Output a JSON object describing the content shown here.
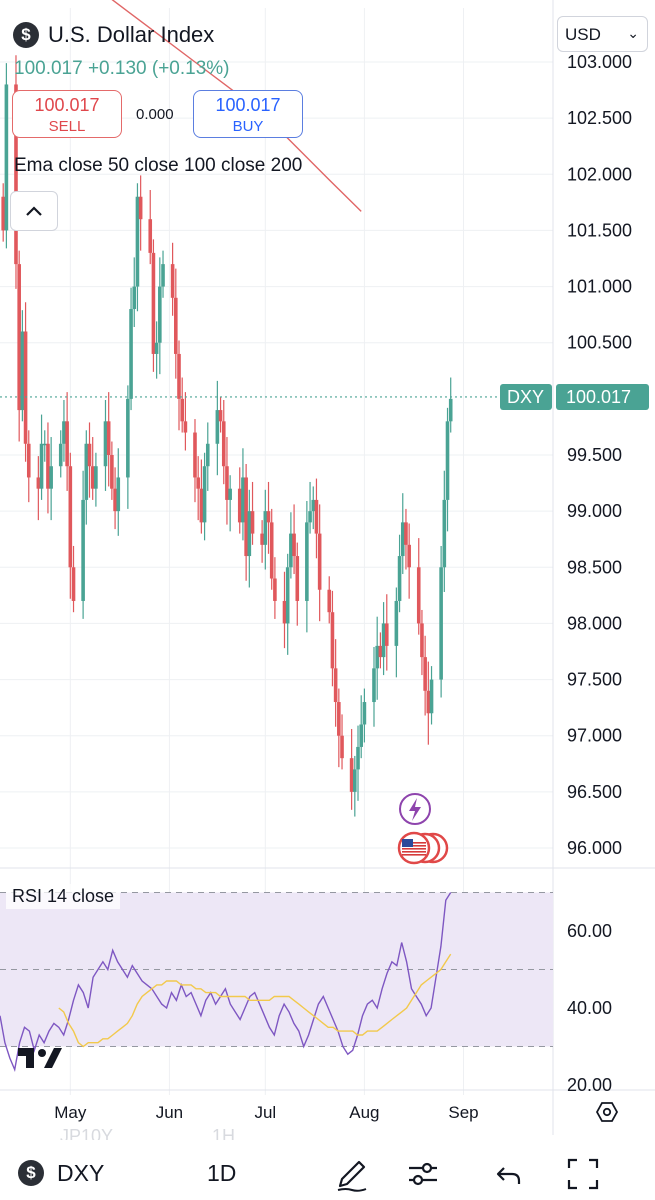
{
  "header": {
    "symbol_icon": "$",
    "title": "U.S. Dollar Index",
    "price_line": "100.017 +0.130 (+0.13%)",
    "sell_price": "100.017",
    "sell_label": "SELL",
    "spread": "0.000",
    "buy_price": "100.017",
    "buy_label": "BUY",
    "indicator_legend": "Ema close 50 close 100 close 200",
    "currency": "USD",
    "collapse_icon": "chevron-up-icon"
  },
  "rsi_label": "RSI 14 close",
  "ghost_text": {
    "left": "JP10Y",
    "right": "1H"
  },
  "bottom_bar": {
    "symbol_icon": "$",
    "symbol": "DXY",
    "timeframe": "1D",
    "icons": [
      "drawing-pen-icon",
      "indicators-settings-icon",
      "undo-icon",
      "fullscreen-icon"
    ]
  },
  "colors": {
    "up": "#4aa394",
    "down": "#e0585c",
    "ema": "#e06666",
    "rsi_line": "#7e57c2",
    "rsi_ma": "#f2c94c",
    "rsi_band": "#ede7f6",
    "last_price_tag": "#4aa394"
  },
  "chart_data": {
    "type": "candlestick",
    "symbol": "DXY",
    "last_price": 100.017,
    "last_price_label": "100.017",
    "y_ticks": [
      "103.000",
      "102.500",
      "102.000",
      "101.500",
      "101.000",
      "100.500",
      "99.500",
      "99.000",
      "98.500",
      "98.000",
      "97.500",
      "97.000",
      "96.500",
      "96.000"
    ],
    "y_tick_values": [
      103.0,
      102.5,
      102.0,
      101.5,
      101.0,
      100.5,
      99.5,
      99.0,
      98.5,
      98.0,
      97.5,
      97.0,
      96.5,
      96.0
    ],
    "ylim": [
      95.8,
      103.5
    ],
    "x_labels": [
      "May",
      "Jun",
      "Jul",
      "Aug",
      "Sep"
    ],
    "x_label_dates": [
      "2025-05-01",
      "2025-06-01",
      "2025-07-01",
      "2025-08-01",
      "2025-09-01"
    ],
    "xlim": [
      "2025-04-09",
      "2025-09-29"
    ],
    "start_date": "2025-04-10",
    "closes": [
      101.5,
      102.8,
      101.2,
      99.9,
      100.6,
      99.6,
      99.3,
      99.2,
      99.6,
      99.6,
      99.2,
      99.4,
      99.6,
      99.8,
      99.4,
      98.5,
      98.2,
      99.1,
      99.6,
      99.4,
      99.2,
      99.4,
      99.8,
      99.5,
      99.2,
      99.0,
      99.3,
      100.0,
      100.8,
      101.0,
      101.8,
      101.6,
      101.3,
      100.4,
      100.5,
      101.0,
      101.2,
      100.9,
      100.4,
      100.0,
      99.8,
      99.7,
      99.3,
      99.2,
      98.9,
      99.4,
      99.6,
      99.9,
      99.8,
      99.4,
      99.1,
      99.2,
      98.9,
      99.3,
      98.6,
      99.0,
      98.8,
      98.7,
      99.0,
      98.9,
      98.4,
      98.2,
      98.0,
      98.5,
      98.8,
      98.6,
      98.2,
      98.9,
      99.0,
      99.1,
      98.8,
      98.3,
      98.1,
      97.6,
      97.3,
      97.0,
      96.8,
      96.5,
      96.7,
      96.9,
      97.1,
      97.3,
      97.6,
      97.8,
      97.7,
      98.0,
      97.8,
      98.2,
      98.6,
      98.9,
      98.7,
      98.5,
      98.0,
      97.7,
      97.4,
      97.2,
      97.5,
      98.5,
      99.1,
      99.8,
      100.0
    ],
    "ema_label": "Ema close 50 close 100 close 200",
    "ema_dates": [
      "2025-04-12",
      "2025-04-28",
      "2025-05-12",
      "2025-05-26",
      "2025-06-09",
      "2025-06-23",
      "2025-07-07",
      "2025-07-21",
      "2025-07-31"
    ],
    "ema_values": [
      104.3,
      104.0,
      103.6,
      103.3,
      103.0,
      102.7,
      102.35,
      101.95,
      101.67
    ],
    "rsi": {
      "label": "RSI 14 close",
      "y_ticks": [
        "60.00",
        "40.00",
        "20.00"
      ],
      "y_tick_values": [
        60,
        40,
        20
      ],
      "bands": [
        30,
        50,
        70
      ],
      "ylim": [
        18,
        72
      ],
      "values": [
        38,
        31,
        27,
        24,
        31,
        35,
        34,
        29,
        33,
        31,
        34,
        36,
        35,
        33,
        37,
        42,
        46,
        44,
        40,
        48,
        50,
        52,
        50,
        55,
        52,
        50,
        48,
        51,
        49,
        47,
        46,
        45,
        43,
        41,
        40,
        44,
        42,
        46,
        43,
        44,
        41,
        38,
        42,
        44,
        41,
        43,
        45,
        41,
        39,
        37,
        40,
        43,
        44,
        41,
        38,
        35,
        33,
        38,
        41,
        39,
        36,
        34,
        30,
        33,
        37,
        41,
        43,
        40,
        37,
        34,
        30,
        28,
        29,
        33,
        38,
        41,
        42,
        40,
        45,
        49,
        52,
        51,
        57,
        52,
        45,
        43,
        41,
        38,
        40,
        48,
        56,
        68,
        70
      ],
      "ma": [
        40,
        39,
        36,
        34,
        31,
        30,
        31,
        31,
        31,
        32,
        32,
        33,
        34,
        35,
        36,
        38,
        41,
        43,
        44,
        45,
        46,
        46,
        47,
        47,
        47,
        46,
        46,
        46,
        45,
        45,
        44,
        44,
        44,
        43,
        43,
        43,
        43,
        43,
        43,
        42,
        42,
        42,
        42,
        42,
        43,
        43,
        43,
        43,
        42,
        41,
        40,
        39,
        38,
        37,
        36,
        35,
        35,
        34,
        34,
        34,
        34,
        33,
        33,
        34,
        34,
        34,
        35,
        36,
        37,
        38,
        39,
        40,
        42,
        44,
        46,
        47,
        48,
        49,
        50,
        52,
        54
      ]
    }
  }
}
